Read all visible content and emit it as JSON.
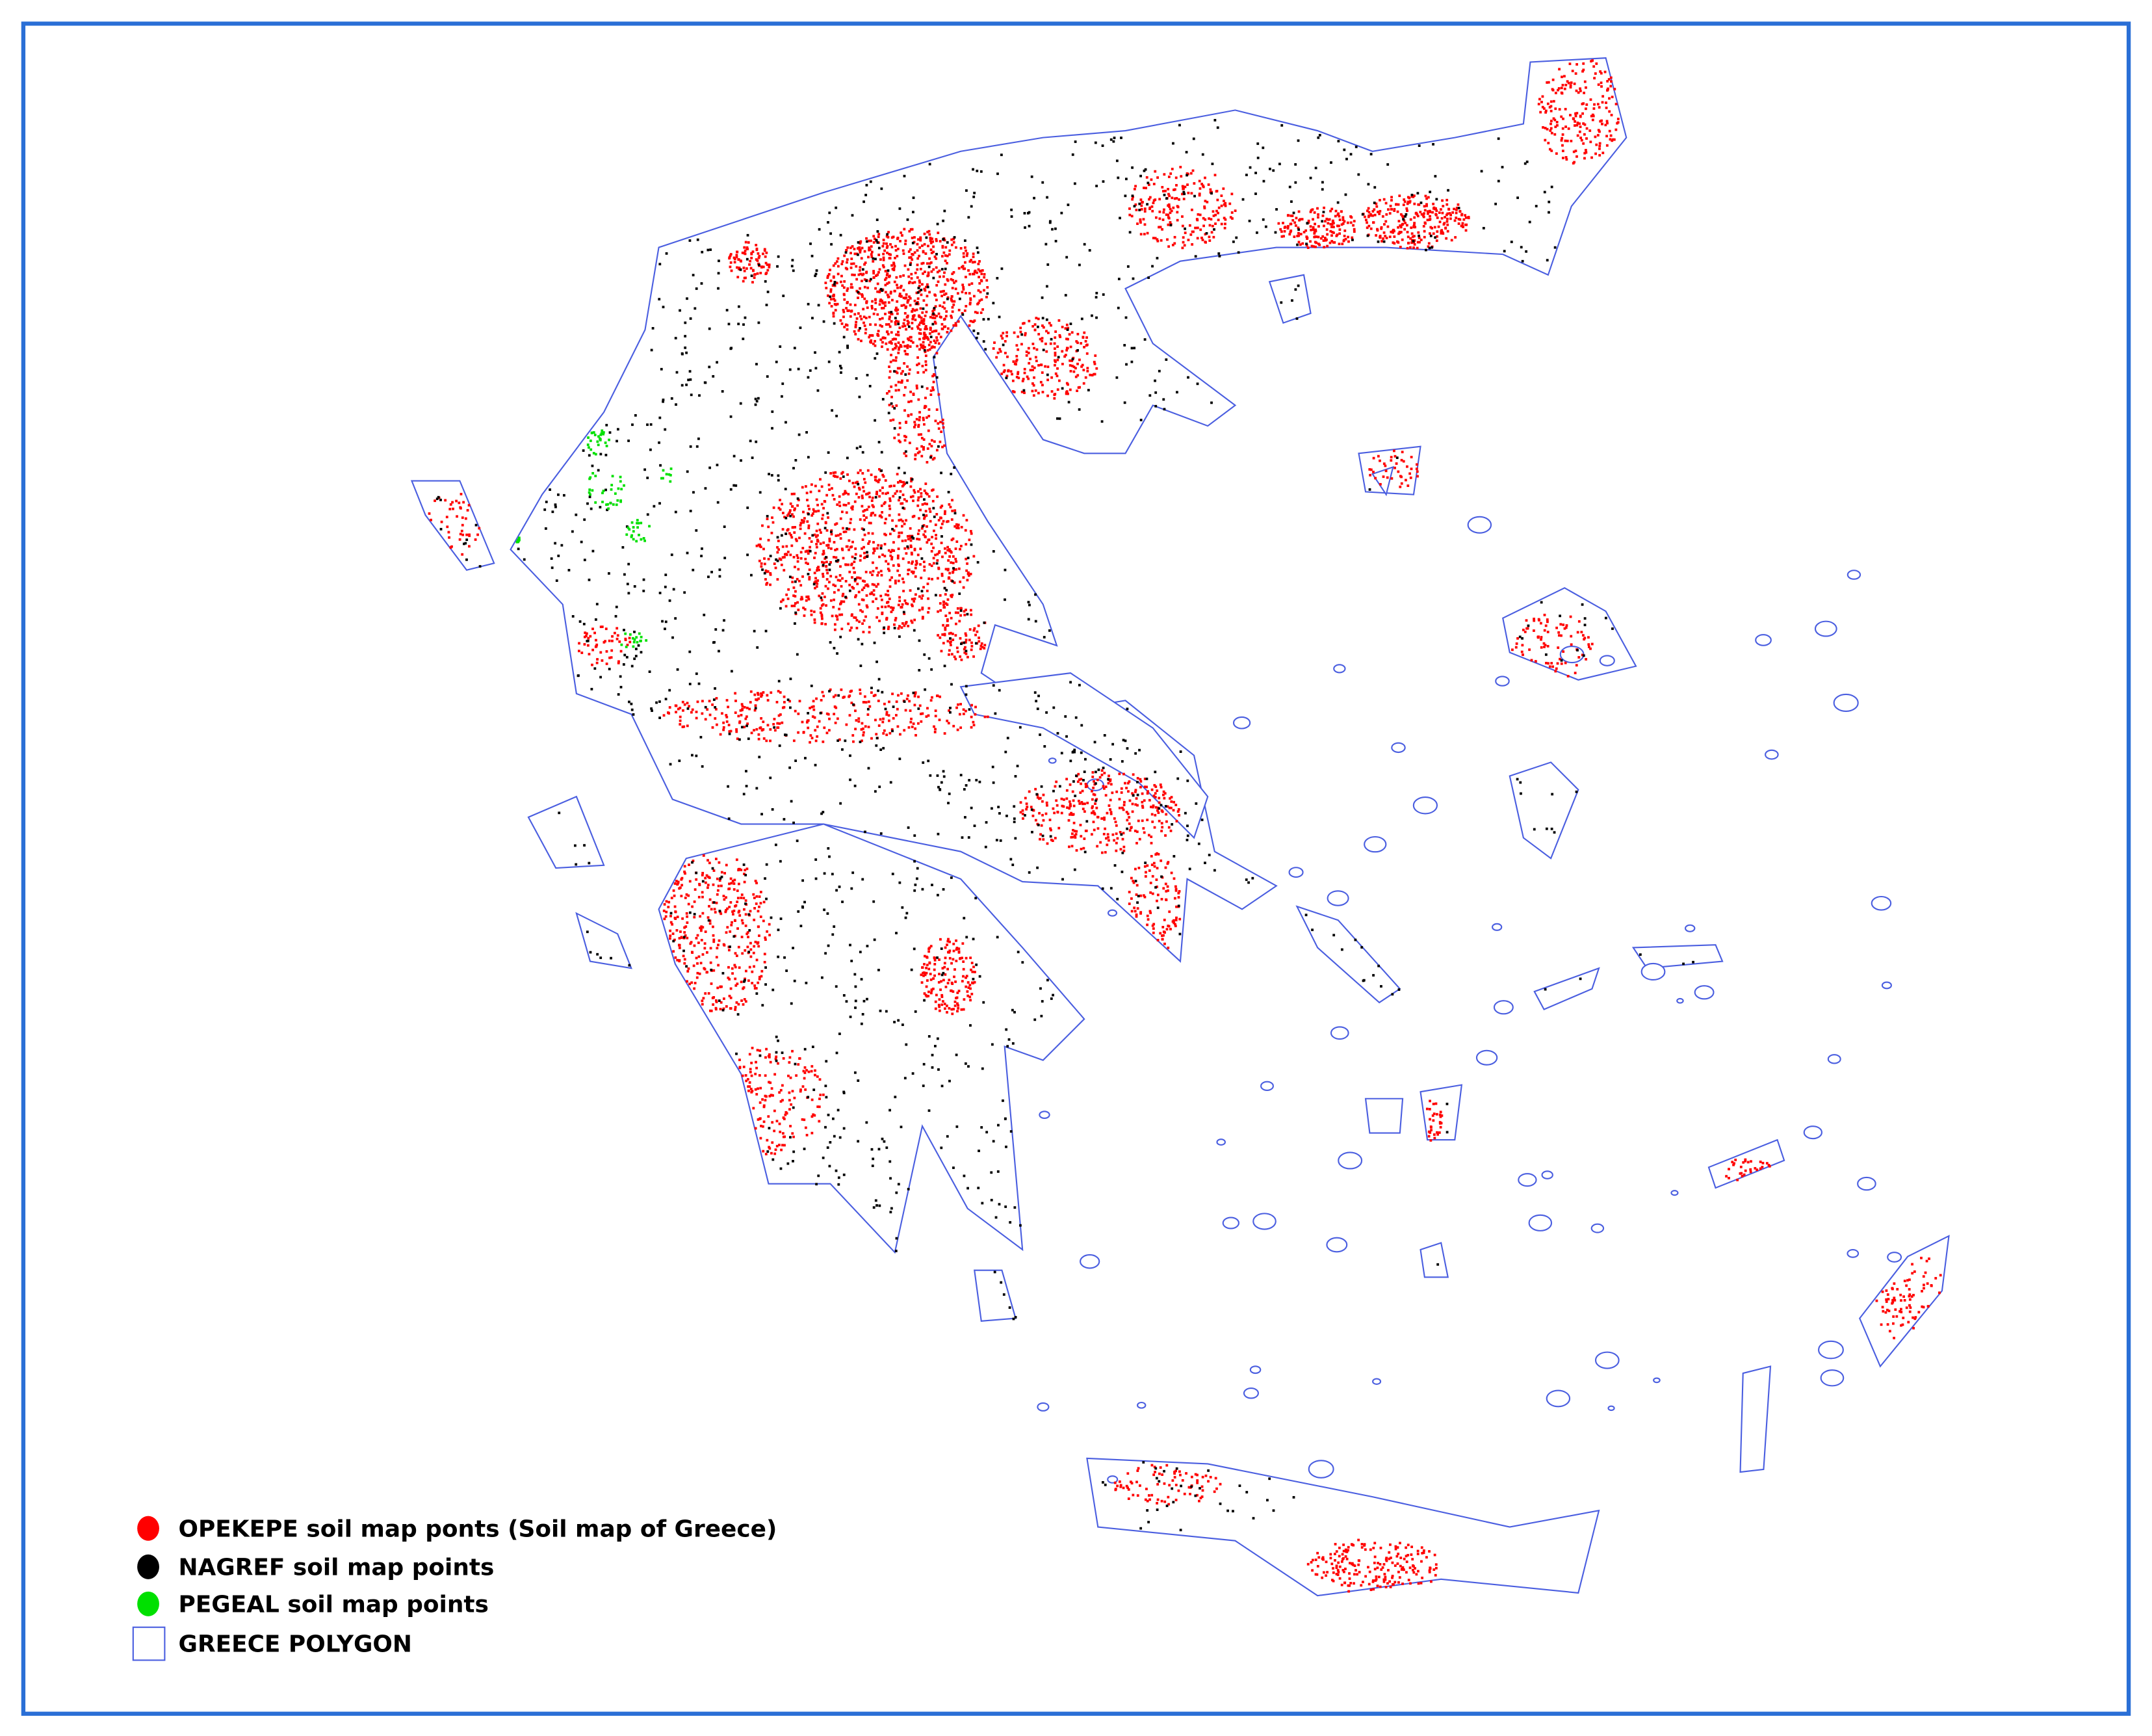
{
  "map": {
    "layers": [
      {
        "id": "opekepe",
        "label": "OPEKEPE soil map ponts (Soil map of Greece)",
        "color": "#ff0000",
        "symbol": "point"
      },
      {
        "id": "nagref",
        "label": "NAGREF soil map points",
        "color": "#000000",
        "symbol": "point"
      },
      {
        "id": "pegeal",
        "label": "PEGEAL soil map points",
        "color": "#00e000",
        "symbol": "point"
      },
      {
        "id": "greece",
        "label": "GREECE POLYGON",
        "color": "#4a5ee0",
        "symbol": "polygon"
      }
    ],
    "frame_color": "#2a6fd6",
    "legend_placement": "bottom-left"
  }
}
